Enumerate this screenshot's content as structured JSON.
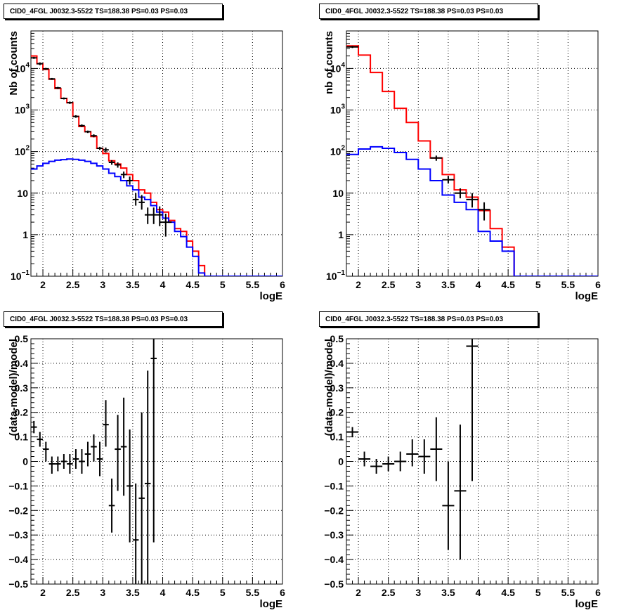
{
  "chart_data": [
    {
      "type": "line",
      "title": "CID0_4FGL J0032.3-5522 TS=188.38 PS=0.03 PS=0.03",
      "xlabel": "logE",
      "ylabel": "Nb of counts",
      "xlim": [
        1.8,
        6.0
      ],
      "ylim": [
        0.1,
        80000
      ],
      "yscale": "log",
      "grid": true,
      "x_ticks": [
        "2",
        "2.5",
        "3",
        "3.5",
        "4",
        "4.5",
        "5",
        "5.5",
        "6"
      ],
      "y_ticks": [
        {
          "v": 0.1,
          "mant": "10",
          "exp": "−1"
        },
        {
          "v": 1,
          "mant": "1",
          "exp": ""
        },
        {
          "v": 10,
          "mant": "10",
          "exp": ""
        },
        {
          "v": 100,
          "mant": "10",
          "exp": "2"
        },
        {
          "v": 1000,
          "mant": "10",
          "exp": "3"
        },
        {
          "v": 10000,
          "mant": "10",
          "exp": "4"
        }
      ],
      "bin_edges": [
        1.8,
        1.9,
        2.0,
        2.1,
        2.2,
        2.3,
        2.4,
        2.5,
        2.6,
        2.7,
        2.8,
        2.9,
        3.0,
        3.1,
        3.2,
        3.3,
        3.4,
        3.5,
        3.6,
        3.7,
        3.8,
        3.9,
        4.0,
        4.1,
        4.2,
        4.3,
        4.4,
        4.5,
        4.6,
        4.7,
        4.8,
        4.9,
        5.0,
        5.1,
        5.2,
        5.3,
        5.4,
        5.5,
        5.6,
        5.7,
        5.8,
        5.9,
        6.0
      ],
      "series": [
        {
          "color": "#ff0000",
          "values": [
            20000,
            13000,
            9500,
            5500,
            3300,
            1900,
            1500,
            700,
            400,
            300,
            230,
            120,
            90,
            60,
            50,
            40,
            28,
            20,
            12,
            10,
            6,
            4,
            3.5,
            2.2,
            1.4,
            1.2,
            0.7,
            0.4,
            0.18,
            0.1,
            0.1,
            0.1,
            0.1,
            0.1,
            0.1,
            0.1,
            0.1,
            0.1,
            0.1,
            0.1,
            0.1,
            0.1
          ]
        },
        {
          "color": "#0000ff",
          "values": [
            38,
            45,
            52,
            58,
            62,
            64,
            66,
            65,
            62,
            58,
            52,
            45,
            38,
            30,
            25,
            20,
            15,
            12,
            8,
            7,
            5,
            3.5,
            2.5,
            2.0,
            1.2,
            0.9,
            0.5,
            0.3,
            0.12,
            0.1,
            0.1,
            0.1,
            0.1,
            0.1,
            0.1,
            0.1,
            0.1,
            0.1,
            0.1,
            0.1,
            0.1,
            0.1
          ]
        }
      ],
      "points": [
        {
          "x": 1.85,
          "y": 18000,
          "xerr": 0.05,
          "ylo": 17000,
          "yhi": 19000
        },
        {
          "x": 1.95,
          "y": 13000,
          "xerr": 0.05,
          "ylo": 12000,
          "yhi": 14000
        },
        {
          "x": 2.05,
          "y": 9800,
          "xerr": 0.05,
          "ylo": 9300,
          "yhi": 10300
        },
        {
          "x": 2.15,
          "y": 5600,
          "xerr": 0.05,
          "ylo": 5300,
          "yhi": 5900
        },
        {
          "x": 2.25,
          "y": 3400,
          "xerr": 0.05,
          "ylo": 3200,
          "yhi": 3600
        },
        {
          "x": 2.35,
          "y": 1900,
          "xerr": 0.05,
          "ylo": 1800,
          "yhi": 2000
        },
        {
          "x": 2.45,
          "y": 1500,
          "xerr": 0.05,
          "ylo": 1400,
          "yhi": 1600
        },
        {
          "x": 2.55,
          "y": 700,
          "xerr": 0.05,
          "ylo": 650,
          "yhi": 750
        },
        {
          "x": 2.65,
          "y": 420,
          "xerr": 0.05,
          "ylo": 390,
          "yhi": 450
        },
        {
          "x": 2.75,
          "y": 300,
          "xerr": 0.05,
          "ylo": 280,
          "yhi": 320
        },
        {
          "x": 2.85,
          "y": 240,
          "xerr": 0.05,
          "ylo": 220,
          "yhi": 260
        },
        {
          "x": 2.95,
          "y": 120,
          "xerr": 0.05,
          "ylo": 110,
          "yhi": 130
        },
        {
          "x": 3.05,
          "y": 110,
          "xerr": 0.05,
          "ylo": 95,
          "yhi": 125
        },
        {
          "x": 3.15,
          "y": 55,
          "xerr": 0.05,
          "ylo": 48,
          "yhi": 62
        },
        {
          "x": 3.25,
          "y": 48,
          "xerr": 0.05,
          "ylo": 41,
          "yhi": 55
        },
        {
          "x": 3.35,
          "y": 28,
          "xerr": 0.05,
          "ylo": 23,
          "yhi": 33
        },
        {
          "x": 3.45,
          "y": 20,
          "xerr": 0.05,
          "ylo": 16,
          "yhi": 25
        },
        {
          "x": 3.55,
          "y": 7,
          "xerr": 0.05,
          "ylo": 5,
          "yhi": 10
        },
        {
          "x": 3.65,
          "y": 6,
          "xerr": 0.05,
          "ylo": 4,
          "yhi": 9
        },
        {
          "x": 3.75,
          "y": 3,
          "xerr": 0.05,
          "ylo": 1.8,
          "yhi": 4.5
        },
        {
          "x": 3.85,
          "y": 3,
          "xerr": 0.05,
          "ylo": 1.8,
          "yhi": 4.5
        },
        {
          "x": 3.95,
          "y": 3,
          "xerr": 0.05,
          "ylo": 1.6,
          "yhi": 4.8
        },
        {
          "x": 4.05,
          "y": 2,
          "xerr": 0.1,
          "ylo": 0.9,
          "yhi": 3.2
        }
      ]
    },
    {
      "type": "line",
      "title": "CID0_4FGL J0032.3-5522 TS=188.38 PS=0.03 PS=0.03",
      "xlabel": "logE",
      "ylabel": "nb of counts",
      "xlim": [
        1.8,
        6.0
      ],
      "ylim": [
        0.1,
        80000
      ],
      "yscale": "log",
      "grid": true,
      "x_ticks": [
        "2",
        "2.5",
        "3",
        "3.5",
        "4",
        "4.5",
        "5",
        "5.5",
        "6"
      ],
      "y_ticks": [
        {
          "v": 0.1,
          "mant": "10",
          "exp": "−1"
        },
        {
          "v": 1,
          "mant": "1",
          "exp": ""
        },
        {
          "v": 10,
          "mant": "10",
          "exp": ""
        },
        {
          "v": 100,
          "mant": "10",
          "exp": "2"
        },
        {
          "v": 1000,
          "mant": "10",
          "exp": "3"
        },
        {
          "v": 10000,
          "mant": "10",
          "exp": "4"
        }
      ],
      "bin_edges": [
        1.8,
        2.0,
        2.2,
        2.4,
        2.6,
        2.8,
        3.0,
        3.2,
        3.4,
        3.6,
        3.8,
        4.0,
        4.2,
        4.4,
        4.6,
        4.8,
        5.0,
        5.2,
        5.4,
        5.6,
        5.8,
        6.0
      ],
      "series": [
        {
          "color": "#ff0000",
          "values": [
            35000,
            21000,
            8000,
            2800,
            1100,
            500,
            180,
            70,
            28,
            12,
            8,
            3.8,
            1.4,
            0.5,
            0.1,
            0.1,
            0.1,
            0.1,
            0.1,
            0.1,
            0.1
          ]
        },
        {
          "color": "#0000ff",
          "values": [
            85,
            115,
            130,
            120,
            95,
            65,
            38,
            20,
            9,
            6,
            4,
            1.2,
            0.7,
            0.4,
            0.1,
            0.1,
            0.1,
            0.1,
            0.1,
            0.1,
            0.1
          ]
        }
      ],
      "points": [
        {
          "x": 1.9,
          "y": 33000,
          "xerr": 0.1,
          "ylo": 31000,
          "yhi": 35000
        },
        {
          "x": 3.3,
          "y": 70,
          "xerr": 0.1,
          "ylo": 60,
          "yhi": 80
        },
        {
          "x": 3.5,
          "y": 21,
          "xerr": 0.1,
          "ylo": 17,
          "yhi": 26
        },
        {
          "x": 3.7,
          "y": 10,
          "xerr": 0.1,
          "ylo": 7.5,
          "yhi": 13
        },
        {
          "x": 3.9,
          "y": 7,
          "xerr": 0.1,
          "ylo": 4.5,
          "yhi": 10
        },
        {
          "x": 4.1,
          "y": 4,
          "xerr": 0.1,
          "ylo": 2.2,
          "yhi": 6
        }
      ]
    },
    {
      "type": "scatter",
      "title": "CID0_4FGL J0032.3-5522 TS=188.38 PS=0.03 PS=0.03",
      "xlabel": "logE",
      "ylabel": "(data-model)/model",
      "xlim": [
        1.8,
        6.0
      ],
      "ylim": [
        -0.5,
        0.5
      ],
      "grid": true,
      "x_ticks": [
        "2",
        "2.5",
        "3",
        "3.5",
        "4",
        "4.5",
        "5",
        "5.5",
        "6"
      ],
      "y_ticks": [
        "−0.5",
        "−0.4",
        "−0.3",
        "−0.2",
        "−0.1",
        "0",
        "0.1",
        "0.2",
        "0.3",
        "0.4",
        "0.5"
      ],
      "points": [
        {
          "x": 1.85,
          "y": 0.14,
          "xerr": 0.05,
          "ylo": 0.115,
          "yhi": 0.165
        },
        {
          "x": 1.95,
          "y": 0.09,
          "xerr": 0.05,
          "ylo": 0.06,
          "yhi": 0.12
        },
        {
          "x": 2.05,
          "y": 0.05,
          "xerr": 0.05,
          "ylo": 0.0,
          "yhi": 0.08
        },
        {
          "x": 2.15,
          "y": -0.01,
          "xerr": 0.05,
          "ylo": -0.05,
          "yhi": 0.02
        },
        {
          "x": 2.25,
          "y": -0.01,
          "xerr": 0.05,
          "ylo": -0.04,
          "yhi": 0.02
        },
        {
          "x": 2.35,
          "y": 0.0,
          "xerr": 0.05,
          "ylo": -0.03,
          "yhi": 0.03
        },
        {
          "x": 2.45,
          "y": -0.01,
          "xerr": 0.05,
          "ylo": -0.05,
          "yhi": 0.03
        },
        {
          "x": 2.55,
          "y": 0.01,
          "xerr": 0.05,
          "ylo": -0.03,
          "yhi": 0.05
        },
        {
          "x": 2.65,
          "y": 0.0,
          "xerr": 0.05,
          "ylo": -0.05,
          "yhi": 0.05
        },
        {
          "x": 2.75,
          "y": 0.03,
          "xerr": 0.05,
          "ylo": -0.02,
          "yhi": 0.08
        },
        {
          "x": 2.85,
          "y": 0.06,
          "xerr": 0.05,
          "ylo": 0.0,
          "yhi": 0.11
        },
        {
          "x": 2.95,
          "y": 0.01,
          "xerr": 0.05,
          "ylo": -0.06,
          "yhi": 0.08
        },
        {
          "x": 3.05,
          "y": 0.15,
          "xerr": 0.05,
          "ylo": 0.06,
          "yhi": 0.25
        },
        {
          "x": 3.15,
          "y": -0.18,
          "xerr": 0.05,
          "ylo": -0.29,
          "yhi": -0.07
        },
        {
          "x": 3.25,
          "y": 0.05,
          "xerr": 0.05,
          "ylo": -0.12,
          "yhi": 0.19
        },
        {
          "x": 3.35,
          "y": 0.06,
          "xerr": 0.05,
          "ylo": -0.14,
          "yhi": 0.26
        },
        {
          "x": 3.45,
          "y": -0.1,
          "xerr": 0.05,
          "ylo": -0.33,
          "yhi": 0.13
        },
        {
          "x": 3.55,
          "y": -0.32,
          "xerr": 0.05,
          "ylo": -0.5,
          "yhi": -0.09
        },
        {
          "x": 3.65,
          "y": -0.15,
          "xerr": 0.05,
          "ylo": -0.5,
          "yhi": 0.2
        },
        {
          "x": 3.75,
          "y": -0.09,
          "xerr": 0.05,
          "ylo": -0.5,
          "yhi": 0.37
        },
        {
          "x": 3.85,
          "y": 0.42,
          "xerr": 0.05,
          "ylo": -0.33,
          "yhi": 0.5
        }
      ]
    },
    {
      "type": "scatter",
      "title": "CID0_4FGL J0032.3-5522 TS=188.38 PS=0.03 PS=0.03",
      "xlabel": "logE",
      "ylabel": "(data-model)/model",
      "xlim": [
        1.8,
        6.0
      ],
      "ylim": [
        -0.5,
        0.5
      ],
      "grid": true,
      "x_ticks": [
        "2",
        "2.5",
        "3",
        "3.5",
        "4",
        "4.5",
        "5",
        "5.5",
        "6"
      ],
      "y_ticks": [
        "−0.5",
        "−0.4",
        "−0.3",
        "−0.2",
        "−0.1",
        "0",
        "0.1",
        "0.2",
        "0.3",
        "0.4",
        "0.5"
      ],
      "points": [
        {
          "x": 1.9,
          "y": 0.12,
          "xerr": 0.1,
          "ylo": 0.1,
          "yhi": 0.14
        },
        {
          "x": 2.1,
          "y": 0.01,
          "xerr": 0.1,
          "ylo": -0.02,
          "yhi": 0.04
        },
        {
          "x": 2.3,
          "y": -0.02,
          "xerr": 0.1,
          "ylo": -0.05,
          "yhi": 0.01
        },
        {
          "x": 2.5,
          "y": -0.01,
          "xerr": 0.1,
          "ylo": -0.04,
          "yhi": 0.02
        },
        {
          "x": 2.7,
          "y": 0.0,
          "xerr": 0.1,
          "ylo": -0.04,
          "yhi": 0.04
        },
        {
          "x": 2.9,
          "y": 0.03,
          "xerr": 0.1,
          "ylo": -0.02,
          "yhi": 0.09
        },
        {
          "x": 3.1,
          "y": 0.02,
          "xerr": 0.1,
          "ylo": -0.05,
          "yhi": 0.09
        },
        {
          "x": 3.3,
          "y": 0.05,
          "xerr": 0.1,
          "ylo": -0.08,
          "yhi": 0.18
        },
        {
          "x": 3.5,
          "y": -0.18,
          "xerr": 0.1,
          "ylo": -0.36,
          "yhi": 0.0
        },
        {
          "x": 3.7,
          "y": -0.12,
          "xerr": 0.1,
          "ylo": -0.4,
          "yhi": 0.15
        },
        {
          "x": 3.9,
          "y": 0.47,
          "xerr": 0.1,
          "ylo": -0.08,
          "yhi": 0.5
        }
      ]
    }
  ]
}
